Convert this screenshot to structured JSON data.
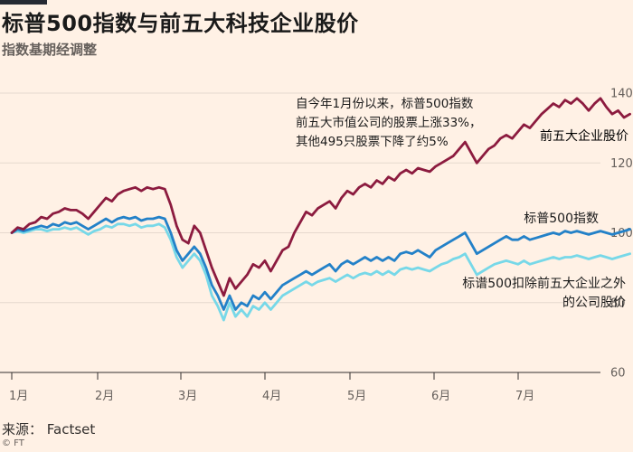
{
  "title": "标普500指数与前五大科技企业股价",
  "subtitle": "指数基期经调整",
  "source": "来源：  Factset",
  "credit": "© FT",
  "colors": {
    "background": "#fff1e5",
    "top5": "#8c1b3f",
    "sp500": "#2381c8",
    "other495": "#77d8e8",
    "grid": "#e6d9ce"
  },
  "chart_data": {
    "type": "line",
    "x_ticks": [
      "1月",
      "2月",
      "3月",
      "4月",
      "5月",
      "6月",
      "7月"
    ],
    "y_ticks": [
      60,
      80,
      100,
      120,
      140
    ],
    "ylim": [
      60,
      142
    ],
    "xlim": [
      0,
      200
    ],
    "grid": true,
    "annotation": [
      "自今年1月份以来，标普500指数",
      "前五大市值公司的股票上涨33%，",
      "其他495只股票下降了约5%"
    ],
    "series": [
      {
        "name": "前五大企业股价",
        "label_lines": [
          "前五大企业股价"
        ],
        "color": "#8c1b3f",
        "points": [
          [
            0,
            100
          ],
          [
            2,
            101.5
          ],
          [
            4,
            101
          ],
          [
            6,
            102.5
          ],
          [
            8,
            103
          ],
          [
            10,
            104.5
          ],
          [
            12,
            104
          ],
          [
            14,
            105.5
          ],
          [
            16,
            106
          ],
          [
            18,
            107
          ],
          [
            20,
            106.5
          ],
          [
            22,
            106.5
          ],
          [
            24,
            105.5
          ],
          [
            26,
            104
          ],
          [
            28,
            106
          ],
          [
            30,
            108
          ],
          [
            32,
            110
          ],
          [
            34,
            109
          ],
          [
            36,
            111
          ],
          [
            38,
            112
          ],
          [
            40,
            112.5
          ],
          [
            42,
            113
          ],
          [
            44,
            112
          ],
          [
            46,
            113
          ],
          [
            48,
            112.5
          ],
          [
            50,
            113
          ],
          [
            52,
            112.5
          ],
          [
            54,
            108
          ],
          [
            56,
            102
          ],
          [
            58,
            98
          ],
          [
            60,
            97
          ],
          [
            62,
            102
          ],
          [
            64,
            100
          ],
          [
            66,
            95
          ],
          [
            68,
            90
          ],
          [
            70,
            86
          ],
          [
            72,
            82
          ],
          [
            74,
            87
          ],
          [
            76,
            84
          ],
          [
            78,
            86
          ],
          [
            80,
            88
          ],
          [
            82,
            91
          ],
          [
            84,
            90
          ],
          [
            86,
            92
          ],
          [
            88,
            89
          ],
          [
            90,
            92
          ],
          [
            92,
            95
          ],
          [
            94,
            96
          ],
          [
            96,
            100
          ],
          [
            98,
            103
          ],
          [
            100,
            106
          ],
          [
            102,
            105
          ],
          [
            104,
            107
          ],
          [
            106,
            108
          ],
          [
            108,
            109
          ],
          [
            110,
            107
          ],
          [
            112,
            110
          ],
          [
            114,
            112
          ],
          [
            116,
            111
          ],
          [
            118,
            113
          ],
          [
            120,
            114
          ],
          [
            122,
            113
          ],
          [
            124,
            115
          ],
          [
            126,
            114
          ],
          [
            128,
            116
          ],
          [
            130,
            115
          ],
          [
            132,
            117
          ],
          [
            134,
            118
          ],
          [
            136,
            117
          ],
          [
            138,
            118.5
          ],
          [
            140,
            118
          ],
          [
            142,
            117.5
          ],
          [
            144,
            119
          ],
          [
            146,
            120
          ],
          [
            148,
            121
          ],
          [
            150,
            122
          ],
          [
            152,
            124
          ],
          [
            154,
            126
          ],
          [
            156,
            123
          ],
          [
            158,
            120
          ],
          [
            160,
            122
          ],
          [
            162,
            124
          ],
          [
            164,
            125
          ],
          [
            166,
            127
          ],
          [
            168,
            128
          ],
          [
            170,
            127
          ],
          [
            172,
            129
          ],
          [
            174,
            131
          ],
          [
            176,
            130
          ],
          [
            178,
            132
          ],
          [
            180,
            134
          ],
          [
            182,
            135.5
          ],
          [
            184,
            137
          ],
          [
            186,
            136
          ],
          [
            188,
            138
          ],
          [
            190,
            137
          ],
          [
            192,
            138.5
          ],
          [
            194,
            137
          ],
          [
            196,
            135
          ],
          [
            198,
            137
          ],
          [
            200,
            138.5
          ],
          [
            202,
            136
          ],
          [
            204,
            134
          ],
          [
            206,
            135
          ],
          [
            208,
            133
          ],
          [
            210,
            134
          ]
        ]
      },
      {
        "name": "标普500指数",
        "label_lines": [
          "标普500指数"
        ],
        "color": "#2381c8",
        "points": [
          [
            0,
            100
          ],
          [
            2,
            101
          ],
          [
            4,
            100.5
          ],
          [
            6,
            101
          ],
          [
            8,
            101.5
          ],
          [
            10,
            102
          ],
          [
            12,
            101.5
          ],
          [
            14,
            102.5
          ],
          [
            16,
            102
          ],
          [
            18,
            103
          ],
          [
            20,
            102.5
          ],
          [
            22,
            103
          ],
          [
            24,
            102
          ],
          [
            26,
            101
          ],
          [
            28,
            102
          ],
          [
            30,
            103
          ],
          [
            32,
            104
          ],
          [
            34,
            103
          ],
          [
            36,
            104
          ],
          [
            38,
            104.5
          ],
          [
            40,
            104
          ],
          [
            42,
            104.5
          ],
          [
            44,
            103.5
          ],
          [
            46,
            104
          ],
          [
            48,
            104
          ],
          [
            50,
            104.5
          ],
          [
            52,
            104
          ],
          [
            54,
            100
          ],
          [
            56,
            95
          ],
          [
            58,
            92
          ],
          [
            60,
            94
          ],
          [
            62,
            96
          ],
          [
            64,
            94
          ],
          [
            66,
            90
          ],
          [
            68,
            85
          ],
          [
            70,
            82
          ],
          [
            72,
            78
          ],
          [
            74,
            82
          ],
          [
            76,
            78
          ],
          [
            78,
            80
          ],
          [
            80,
            79
          ],
          [
            82,
            82
          ],
          [
            84,
            81
          ],
          [
            86,
            83
          ],
          [
            88,
            81
          ],
          [
            90,
            83
          ],
          [
            92,
            85
          ],
          [
            94,
            86
          ],
          [
            96,
            87
          ],
          [
            98,
            88
          ],
          [
            100,
            89
          ],
          [
            102,
            88
          ],
          [
            104,
            89
          ],
          [
            106,
            90
          ],
          [
            108,
            91
          ],
          [
            110,
            89
          ],
          [
            112,
            91
          ],
          [
            114,
            92
          ],
          [
            116,
            91
          ],
          [
            118,
            92
          ],
          [
            120,
            93
          ],
          [
            122,
            92
          ],
          [
            124,
            93
          ],
          [
            126,
            92
          ],
          [
            128,
            93
          ],
          [
            130,
            92
          ],
          [
            132,
            94
          ],
          [
            134,
            94.5
          ],
          [
            136,
            94
          ],
          [
            138,
            95
          ],
          [
            140,
            94
          ],
          [
            142,
            93
          ],
          [
            144,
            95
          ],
          [
            146,
            96
          ],
          [
            148,
            97
          ],
          [
            150,
            98
          ],
          [
            152,
            99
          ],
          [
            154,
            100
          ],
          [
            156,
            97
          ],
          [
            158,
            94
          ],
          [
            160,
            95
          ],
          [
            162,
            96
          ],
          [
            164,
            97
          ],
          [
            166,
            98
          ],
          [
            168,
            99
          ],
          [
            170,
            98
          ],
          [
            172,
            98
          ],
          [
            174,
            99
          ],
          [
            176,
            98
          ],
          [
            178,
            98.5
          ],
          [
            180,
            99
          ],
          [
            182,
            99.5
          ],
          [
            184,
            100
          ],
          [
            186,
            99.5
          ],
          [
            188,
            100.5
          ],
          [
            190,
            100
          ],
          [
            192,
            100.5
          ],
          [
            194,
            100
          ],
          [
            196,
            99.5
          ],
          [
            198,
            100
          ],
          [
            200,
            100.5
          ],
          [
            202,
            100
          ],
          [
            204,
            99.5
          ],
          [
            206,
            100
          ],
          [
            208,
            100.5
          ],
          [
            210,
            101
          ]
        ]
      },
      {
        "name": "标谱500扣除前五大企业之外的公司股价",
        "label_lines": [
          "标谱500扣除前五大企业之外",
          "的公司股价"
        ],
        "color": "#77d8e8",
        "points": [
          [
            0,
            100
          ],
          [
            2,
            100.5
          ],
          [
            4,
            100
          ],
          [
            6,
            100.5
          ],
          [
            8,
            101
          ],
          [
            10,
            101
          ],
          [
            12,
            100.5
          ],
          [
            14,
            101
          ],
          [
            16,
            101
          ],
          [
            18,
            101.5
          ],
          [
            20,
            101
          ],
          [
            22,
            101.5
          ],
          [
            24,
            100.5
          ],
          [
            26,
            99.5
          ],
          [
            28,
            100.5
          ],
          [
            30,
            101
          ],
          [
            32,
            102
          ],
          [
            34,
            101.5
          ],
          [
            36,
            102.5
          ],
          [
            38,
            102.5
          ],
          [
            40,
            102
          ],
          [
            42,
            102.5
          ],
          [
            44,
            101.5
          ],
          [
            46,
            102
          ],
          [
            48,
            102
          ],
          [
            50,
            102.5
          ],
          [
            52,
            101.5
          ],
          [
            54,
            98
          ],
          [
            56,
            93
          ],
          [
            58,
            90
          ],
          [
            60,
            92
          ],
          [
            62,
            94
          ],
          [
            64,
            92
          ],
          [
            66,
            88
          ],
          [
            68,
            82
          ],
          [
            70,
            79
          ],
          [
            72,
            75
          ],
          [
            74,
            80
          ],
          [
            76,
            76
          ],
          [
            78,
            78
          ],
          [
            80,
            76
          ],
          [
            82,
            79
          ],
          [
            84,
            78
          ],
          [
            86,
            80
          ],
          [
            88,
            78
          ],
          [
            90,
            80
          ],
          [
            92,
            82
          ],
          [
            94,
            83
          ],
          [
            96,
            84
          ],
          [
            98,
            85
          ],
          [
            100,
            86
          ],
          [
            102,
            85
          ],
          [
            104,
            86
          ],
          [
            106,
            86.5
          ],
          [
            108,
            87
          ],
          [
            110,
            86
          ],
          [
            112,
            87
          ],
          [
            114,
            88
          ],
          [
            116,
            87
          ],
          [
            118,
            88
          ],
          [
            120,
            88.5
          ],
          [
            122,
            88
          ],
          [
            124,
            89
          ],
          [
            126,
            88
          ],
          [
            128,
            89
          ],
          [
            130,
            88
          ],
          [
            132,
            89.5
          ],
          [
            134,
            90
          ],
          [
            136,
            89.5
          ],
          [
            138,
            90
          ],
          [
            140,
            89.5
          ],
          [
            142,
            89
          ],
          [
            144,
            90
          ],
          [
            146,
            91
          ],
          [
            148,
            91.5
          ],
          [
            150,
            92.5
          ],
          [
            152,
            93
          ],
          [
            154,
            94
          ],
          [
            156,
            91
          ],
          [
            158,
            88
          ],
          [
            160,
            89
          ],
          [
            162,
            90
          ],
          [
            164,
            91
          ],
          [
            166,
            91.5
          ],
          [
            168,
            92
          ],
          [
            170,
            91.5
          ],
          [
            172,
            91
          ],
          [
            174,
            92
          ],
          [
            176,
            91
          ],
          [
            178,
            91.5
          ],
          [
            180,
            92
          ],
          [
            182,
            92.5
          ],
          [
            184,
            93
          ],
          [
            186,
            92.5
          ],
          [
            188,
            93
          ],
          [
            190,
            93
          ],
          [
            192,
            93.5
          ],
          [
            194,
            93
          ],
          [
            196,
            92.5
          ],
          [
            198,
            93
          ],
          [
            200,
            93.5
          ],
          [
            202,
            93
          ],
          [
            204,
            92.5
          ],
          [
            206,
            93
          ],
          [
            208,
            93.5
          ],
          [
            210,
            94
          ]
        ]
      }
    ]
  }
}
